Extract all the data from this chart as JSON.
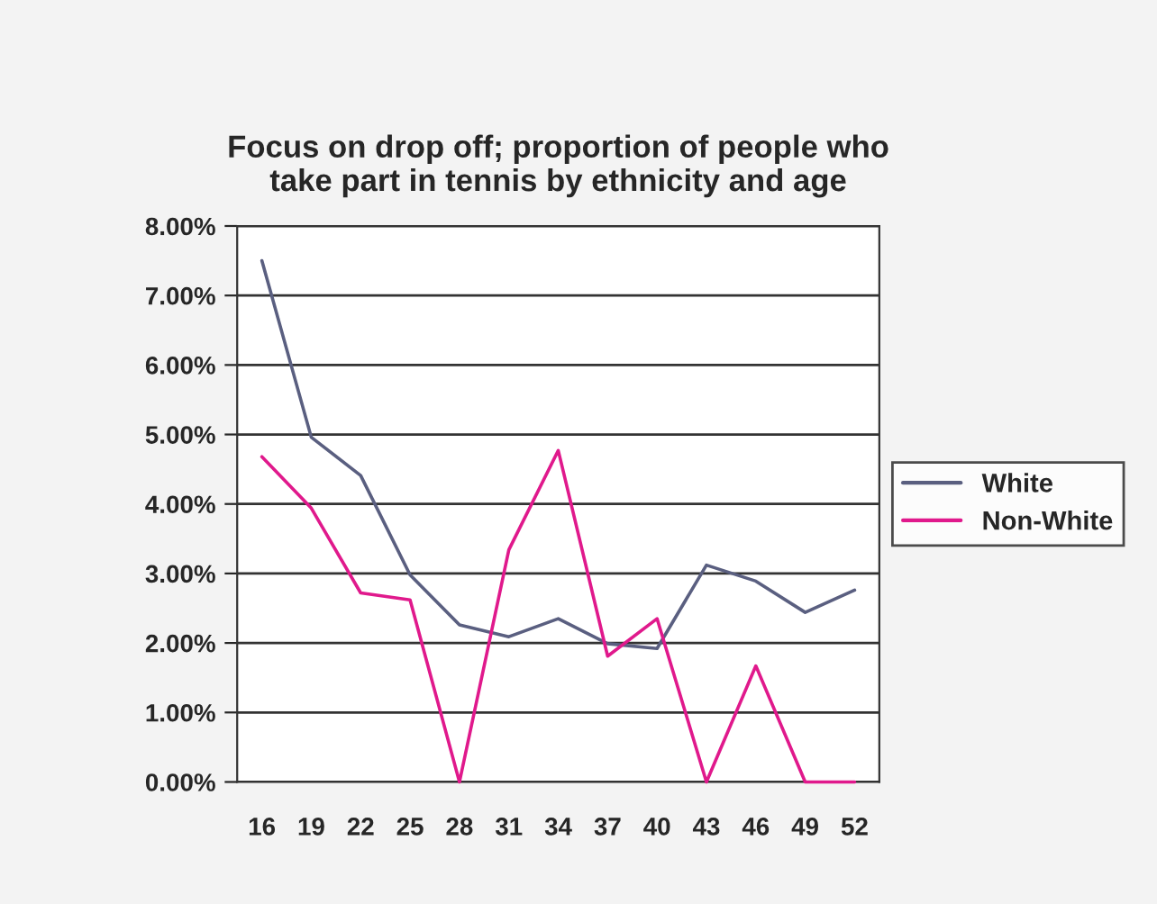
{
  "chart_data": {
    "type": "line",
    "title": "Focus on drop off; proportion of people who\ntake part in tennis by ethnicity and age",
    "categories": [
      "16",
      "19",
      "22",
      "25",
      "28",
      "31",
      "34",
      "37",
      "40",
      "43",
      "46",
      "49",
      "52"
    ],
    "series": [
      {
        "name": "White",
        "color": "#5a5f80",
        "values": [
          7.5,
          4.96,
          4.41,
          2.98,
          2.26,
          2.09,
          2.35,
          1.99,
          1.92,
          3.12,
          2.89,
          2.44,
          2.76
        ]
      },
      {
        "name": "Non-White",
        "color": "#e0198c",
        "values": [
          4.68,
          3.94,
          2.72,
          2.62,
          0,
          3.34,
          4.77,
          1.81,
          2.35,
          0,
          1.67,
          0,
          0
        ]
      }
    ],
    "ylim": [
      0,
      8
    ],
    "yticks": [
      {
        "value": 0,
        "label": "0.00%"
      },
      {
        "value": 1,
        "label": "1.00%"
      },
      {
        "value": 2,
        "label": "2.00%"
      },
      {
        "value": 3,
        "label": "3.00%"
      },
      {
        "value": 4,
        "label": "4.00%"
      },
      {
        "value": 5,
        "label": "5.00%"
      },
      {
        "value": 6,
        "label": "6.00%"
      },
      {
        "value": 7,
        "label": "7.00%"
      },
      {
        "value": 8,
        "label": "8.00%"
      }
    ],
    "grid": "y",
    "legend": "right",
    "marker": "none",
    "line_style": "solid"
  }
}
